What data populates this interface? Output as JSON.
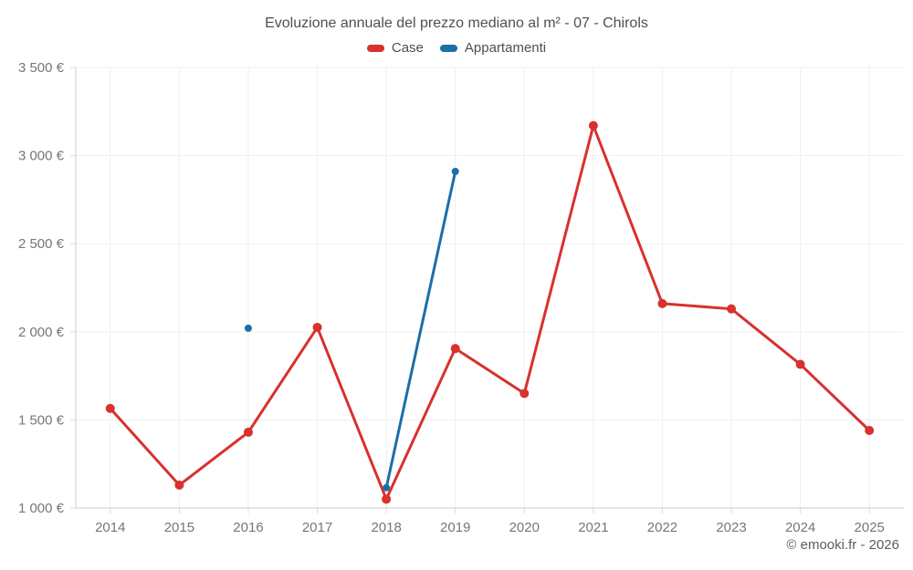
{
  "title": "Evoluzione annuale del prezzo mediano al m² - 07 - Chirols",
  "legend": {
    "items": [
      {
        "label": "Case",
        "color": "#d8312e"
      },
      {
        "label": "Appartamenti",
        "color": "#1b6fa8"
      }
    ]
  },
  "footer": {
    "credit": "© emooki.fr - 2026"
  },
  "colors": {
    "case_red": "#d8312e",
    "appartamenti_blue": "#1b6fa8",
    "grid": "#efefef",
    "axis": "#cccccc",
    "tick": "#dddddd",
    "tick_text": "#767676",
    "title_text": "#4f4f4f"
  },
  "chart_data": {
    "type": "line",
    "title": "Evoluzione annuale del prezzo mediano al m² - 07 - Chirols",
    "x": [
      "2014",
      "2015",
      "2016",
      "2017",
      "2018",
      "2019",
      "2020",
      "2021",
      "2022",
      "2023",
      "2024",
      "2025"
    ],
    "series": [
      {
        "name": "Case",
        "color": "#d8312e",
        "point_radius": 5,
        "values": [
          1565,
          1130,
          1430,
          2025,
          1050,
          1905,
          1650,
          3170,
          2160,
          2130,
          1815,
          1440
        ]
      },
      {
        "name": "Appartamenti",
        "color": "#1b6fa8",
        "point_radius": 4,
        "values": [
          null,
          null,
          2020,
          null,
          1115,
          2910,
          null,
          null,
          null,
          null,
          null,
          null
        ]
      }
    ],
    "ylim": [
      1000,
      3500
    ],
    "yticks": {
      "values": [
        1000,
        1500,
        2000,
        2500,
        3000,
        3500
      ],
      "labels": [
        "1 000 €",
        "1 500 €",
        "2 000 €",
        "2 500 €",
        "3 000 €",
        "3 500 €"
      ]
    },
    "xlabel": "",
    "ylabel": "",
    "grid": true,
    "legend_position": "top",
    "span_gaps": false
  }
}
